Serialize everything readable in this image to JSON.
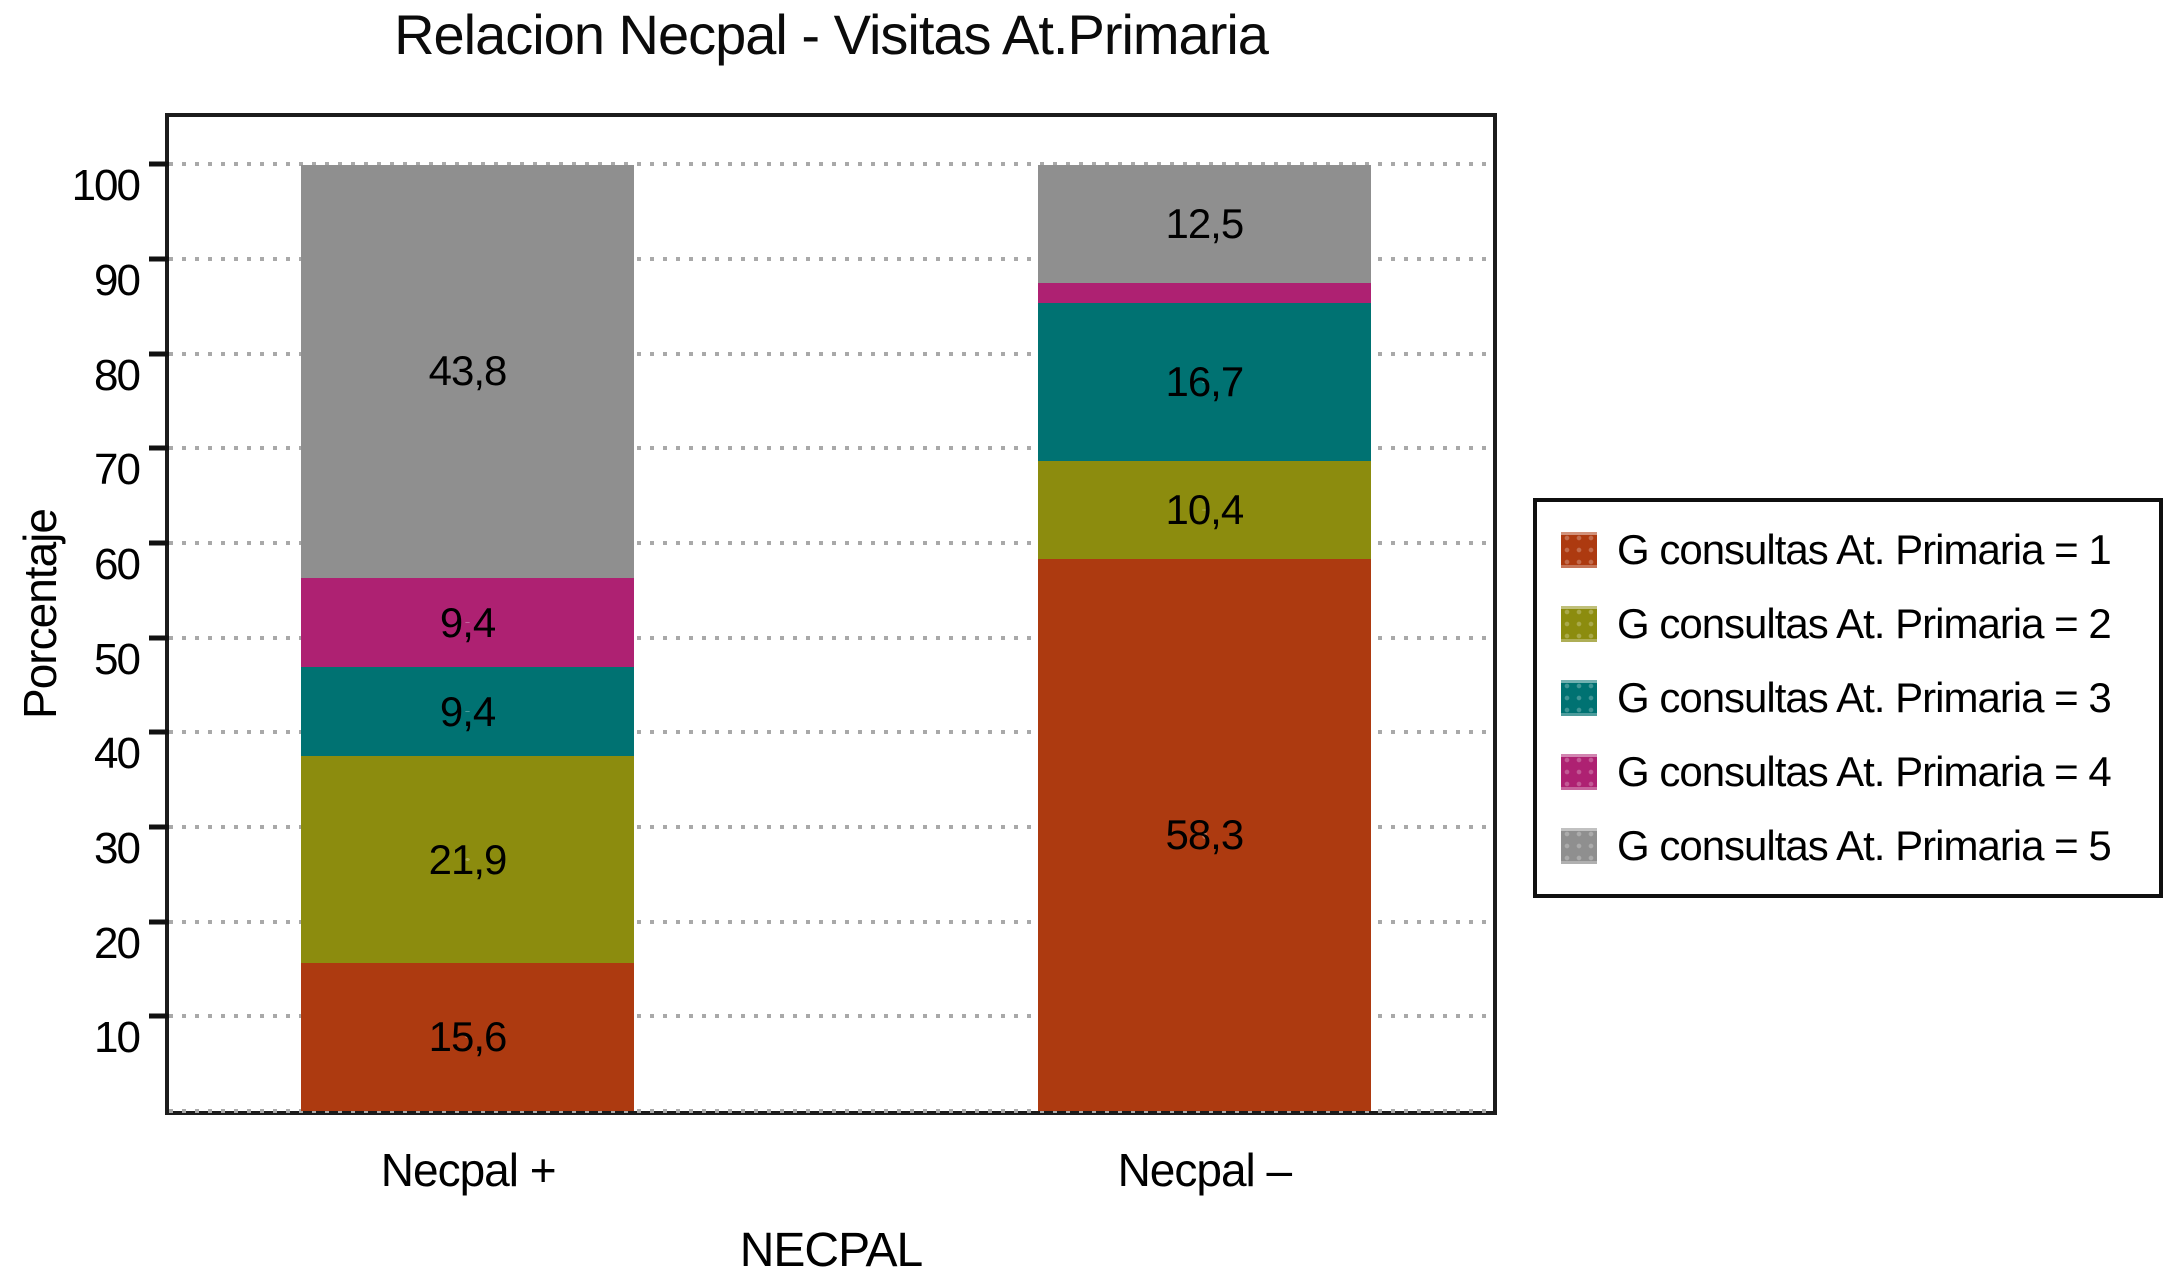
{
  "title": "Relacion Necpal - Visitas At.Primaria",
  "chart_data": {
    "type": "bar",
    "stacked": true,
    "title": "Relacion Necpal - Visitas At.Primaria",
    "xlabel": "NECPAL",
    "ylabel": "Porcentaje",
    "ylim": [
      0,
      105
    ],
    "yticks": [
      10,
      20,
      30,
      40,
      50,
      60,
      70,
      80,
      90,
      100
    ],
    "gridlines": [
      0,
      10,
      20,
      30,
      40,
      50,
      60,
      70,
      80,
      90,
      100
    ],
    "grid": "horizontal-dashed",
    "legend_position": "right",
    "categories": [
      "Necpal +",
      "Necpal –"
    ],
    "series": [
      {
        "name": "G consultas At. Primaria = 1",
        "color": "#ad3a10",
        "values": [
          15.6,
          58.3
        ],
        "labels": [
          "15,6",
          "58,3"
        ]
      },
      {
        "name": "G consultas At. Primaria = 2",
        "color": "#8c8c0e",
        "values": [
          21.9,
          10.4
        ],
        "labels": [
          "21,9",
          "10,4"
        ]
      },
      {
        "name": "G consultas At. Primaria = 3",
        "color": "#007272",
        "values": [
          9.4,
          16.7
        ],
        "labels": [
          "9,4",
          "16,7"
        ]
      },
      {
        "name": "G consultas At. Primaria = 4",
        "color": "#ae2172",
        "values": [
          9.4,
          2.1
        ],
        "labels": [
          "9,4",
          ""
        ]
      },
      {
        "name": "G consultas At. Primaria = 5",
        "color": "#8f8f8f",
        "values": [
          43.8,
          12.5
        ],
        "labels": [
          "43,8",
          "12,5"
        ]
      }
    ]
  }
}
